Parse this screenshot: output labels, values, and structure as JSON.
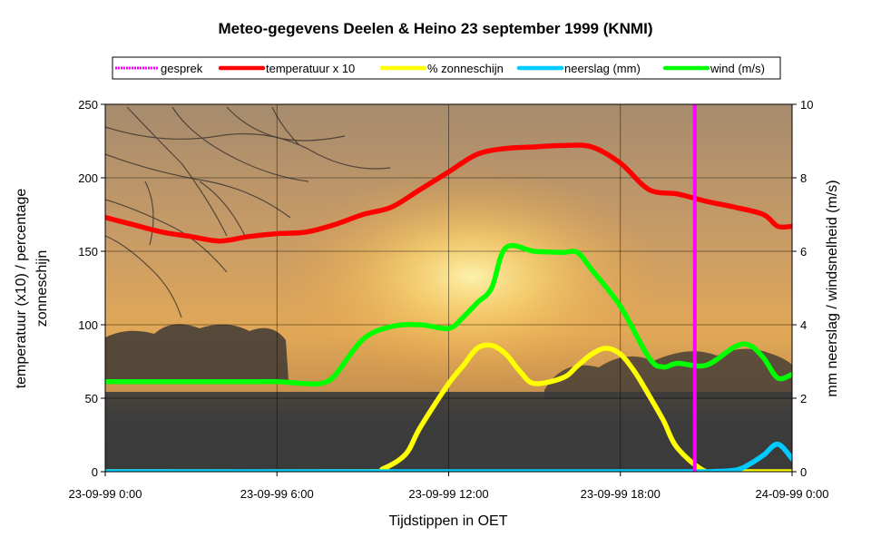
{
  "chart_data": {
    "type": "line",
    "title": "Meteo-gegevens Deelen & Heino 23 september 1999  (KNMI)",
    "xlabel": "Tijdstippen in OET",
    "ylabel_left": [
      "temperatuur (x10) / percentage",
      "zonneschijn"
    ],
    "ylabel_right": "mm neerslag / windsnelheid (m/s)",
    "xlim": [
      0,
      24
    ],
    "ylim_left": [
      0,
      250
    ],
    "ylim_right": [
      0,
      10
    ],
    "y_ticks_left": [
      0,
      50,
      100,
      150,
      200,
      250
    ],
    "y_ticks_right": [
      0,
      2,
      4,
      6,
      8,
      10
    ],
    "x_ticks": [
      {
        "x": 0,
        "label": "23-09-99 0:00"
      },
      {
        "x": 6,
        "label": "23-09-99 6:00"
      },
      {
        "x": 12,
        "label": "23-09-99 12:00"
      },
      {
        "x": 18,
        "label": "23-09-99 18:00"
      },
      {
        "x": 24,
        "label": "24-09-99 0:00"
      }
    ],
    "grid": true,
    "legend_position": "top",
    "background_image": "sunset-photo",
    "legend": [
      {
        "label": "gesprek",
        "color": "#ff00ff",
        "dashed": true
      },
      {
        "label": "temperatuur x 10",
        "color": "#ff0000"
      },
      {
        "label": "% zonneschijn",
        "color": "#ffff00"
      },
      {
        "label": "neerslag (mm)",
        "color": "#00ccff"
      },
      {
        "label": "wind (m/s)",
        "color": "#00ff00"
      }
    ],
    "series": [
      {
        "name": "temperatuur x 10",
        "axis": "left",
        "color": "#ff0000",
        "x": [
          0,
          1,
          2,
          3,
          4,
          5,
          6,
          7,
          8,
          9,
          10,
          11,
          12,
          13,
          14,
          15,
          16,
          17,
          18,
          19,
          20,
          21,
          22,
          23,
          23.5,
          24
        ],
        "y": [
          173,
          168,
          163,
          160,
          157,
          160,
          162,
          163,
          168,
          175,
          180,
          192,
          204,
          216,
          220,
          221,
          222,
          221,
          210,
          192,
          189,
          184,
          180,
          175,
          167,
          167
        ]
      },
      {
        "name": "% zonneschijn",
        "axis": "left",
        "color": "#ffff00",
        "x": [
          0,
          9,
          9.7,
          10.5,
          11,
          12,
          12.5,
          13,
          13.5,
          14,
          14.5,
          15,
          16,
          16.5,
          17,
          17.5,
          18,
          18.5,
          19,
          19.5,
          20,
          21,
          22,
          23,
          24
        ],
        "y": [
          0,
          0,
          2,
          12,
          30,
          60,
          72,
          84,
          86,
          80,
          68,
          60,
          64,
          72,
          80,
          84,
          80,
          68,
          52,
          35,
          16,
          0,
          0,
          0,
          0
        ]
      },
      {
        "name": "neerslag (mm)",
        "axis": "right",
        "color": "#00ccff",
        "x": [
          0,
          20,
          21,
          22,
          22.5,
          23,
          23.5,
          24
        ],
        "y": [
          0,
          0,
          0,
          0.04,
          0.2,
          0.45,
          0.75,
          0.35
        ]
      },
      {
        "name": "wind (m/s)",
        "axis": "right",
        "color": "#00ff00",
        "x": [
          0,
          1,
          2,
          3,
          4,
          5,
          6,
          7,
          7.5,
          8,
          9,
          10,
          11,
          12,
          12.5,
          13,
          13.5,
          14,
          15,
          16,
          16.5,
          17,
          18,
          19,
          19.5,
          20,
          21,
          22,
          22.5,
          23,
          23.5,
          24
        ],
        "y": [
          2.45,
          2.45,
          2.45,
          2.45,
          2.45,
          2.45,
          2.45,
          2.4,
          2.4,
          2.6,
          3.6,
          3.95,
          4.0,
          3.9,
          4.2,
          4.6,
          5.0,
          6.1,
          6.0,
          5.97,
          5.97,
          5.5,
          4.5,
          3.1,
          2.85,
          2.95,
          2.9,
          3.4,
          3.45,
          3.1,
          2.55,
          2.65
        ]
      }
    ],
    "annotations": [
      {
        "type": "vertical_line",
        "label": "gesprek",
        "x": 20.6,
        "color": "#ff00ff"
      }
    ]
  }
}
